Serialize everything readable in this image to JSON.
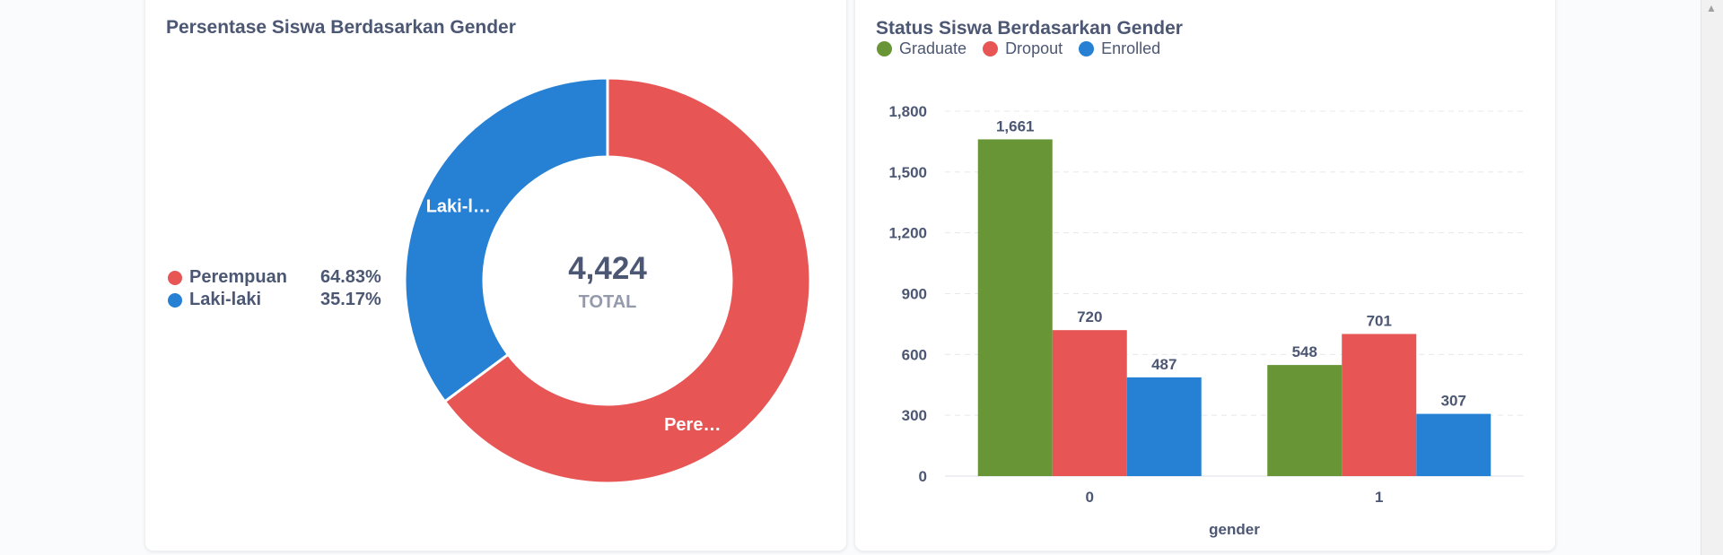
{
  "donut_card": {
    "title": "Persentase Siswa Berdasarkan Gender",
    "center_value": "4,424",
    "center_label": "TOTAL",
    "legend": [
      {
        "label": "Perempuan",
        "percent": "64.83%",
        "color": "#e85555"
      },
      {
        "label": "Laki-laki",
        "percent": "35.17%",
        "color": "#2680d4"
      }
    ],
    "slice_labels": [
      "Pere…",
      "Laki-l…"
    ]
  },
  "bar_card": {
    "title": "Status Siswa Berdasarkan Gender",
    "legend": [
      {
        "label": "Graduate",
        "color": "#689636"
      },
      {
        "label": "Dropout",
        "color": "#e85555"
      },
      {
        "label": "Enrolled",
        "color": "#2680d4"
      }
    ]
  },
  "chart_data": [
    {
      "type": "pie",
      "title": "Persentase Siswa Berdasarkan Gender",
      "categories": [
        "Perempuan",
        "Laki-laki"
      ],
      "values": [
        64.83,
        35.17
      ],
      "total": 4424,
      "total_label": "TOTAL",
      "colors": [
        "#e85555",
        "#2680d4"
      ],
      "legend_position": "left"
    },
    {
      "type": "bar",
      "title": "Status Siswa Berdasarkan Gender",
      "categories": [
        "0",
        "1"
      ],
      "series": [
        {
          "name": "Graduate",
          "values": [
            1661,
            548
          ],
          "labels": [
            "1,661",
            "548"
          ],
          "color": "#689636"
        },
        {
          "name": "Dropout",
          "values": [
            720,
            701
          ],
          "labels": [
            "720",
            "701"
          ],
          "color": "#e85555"
        },
        {
          "name": "Enrolled",
          "values": [
            487,
            307
          ],
          "labels": [
            "487",
            "307"
          ],
          "color": "#2680d4"
        }
      ],
      "xlabel": "gender",
      "ylabel": "",
      "ylim": [
        0,
        1800
      ],
      "yticks": [
        0,
        300,
        600,
        900,
        1200,
        1500,
        1800
      ],
      "ytick_labels": [
        "0",
        "300",
        "600",
        "900",
        "1,200",
        "1,500",
        "1,800"
      ],
      "grid": true,
      "legend_position": "top-left"
    }
  ]
}
